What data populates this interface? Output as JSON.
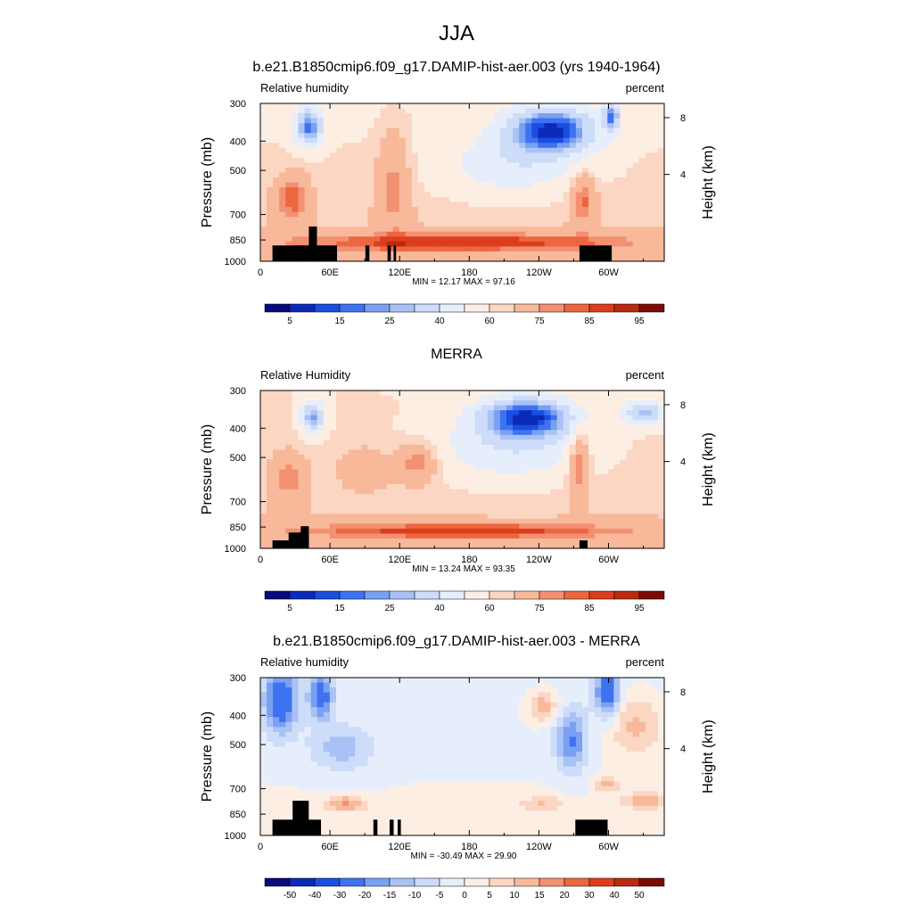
{
  "figure_title": "JJA",
  "chart_data": [
    {
      "type": "heatmap",
      "title": "b.e21.B1850cmip6.f09_g17.DAMIP-hist-aer.003 (yrs 1940-1964)",
      "left_label": "Relative humidity",
      "right_label": "percent",
      "ylabel": "Pressure (mb)",
      "y2label": "Height (km)",
      "yticks": [
        300,
        400,
        500,
        700,
        850,
        1000
      ],
      "y2ticks": [
        8,
        4
      ],
      "xticks": [
        "0",
        "60E",
        "120E",
        "180",
        "120W",
        "60W"
      ],
      "stats": "MIN =  12.17  MAX =  97.16",
      "colorbar_labels": [
        "5",
        "15",
        "25",
        "40",
        "60",
        "75",
        "85",
        "95"
      ],
      "colorbar_colors": [
        "#0a0a7a",
        "#0c2ab8",
        "#1a4ee0",
        "#3e72f0",
        "#7aa0f2",
        "#a9c2f5",
        "#cddcf8",
        "#e6eefc",
        "#fdeee4",
        "#fbd6c2",
        "#f8b89a",
        "#f39072",
        "#ec6640",
        "#dc3d1c",
        "#b92a10",
        "#7b0c05"
      ],
      "min": 12.17,
      "max": 97.16
    },
    {
      "type": "heatmap",
      "title": "MERRA",
      "left_label": "Relative Humidity",
      "right_label": "percent",
      "ylabel": "Pressure (mb)",
      "y2label": "Height (km)",
      "yticks": [
        300,
        400,
        500,
        700,
        850,
        1000
      ],
      "y2ticks": [
        8,
        4
      ],
      "xticks": [
        "0",
        "60E",
        "120E",
        "180",
        "120W",
        "60W"
      ],
      "stats": "MIN =  13.24  MAX =  93.35",
      "colorbar_labels": [
        "5",
        "15",
        "25",
        "40",
        "60",
        "75",
        "85",
        "95"
      ],
      "colorbar_colors": [
        "#0a0a7a",
        "#0c2ab8",
        "#1a4ee0",
        "#3e72f0",
        "#7aa0f2",
        "#a9c2f5",
        "#cddcf8",
        "#e6eefc",
        "#fdeee4",
        "#fbd6c2",
        "#f8b89a",
        "#f39072",
        "#ec6640",
        "#dc3d1c",
        "#b92a10",
        "#7b0c05"
      ],
      "min": 13.24,
      "max": 93.35
    },
    {
      "type": "heatmap",
      "title": "b.e21.B1850cmip6.f09_g17.DAMIP-hist-aer.003 - MERRA",
      "left_label": "Relative humidity",
      "right_label": "percent",
      "ylabel": "Pressure (mb)",
      "y2label": "Height (km)",
      "yticks": [
        300,
        400,
        500,
        700,
        850,
        1000
      ],
      "y2ticks": [
        8,
        4
      ],
      "xticks": [
        "0",
        "60E",
        "120E",
        "180",
        "120W",
        "60W"
      ],
      "stats": "MIN = -30.49  MAX =  29.90",
      "colorbar_labels": [
        "-50",
        "-40",
        "-30",
        "-20",
        "-15",
        "-10",
        "-5",
        "0",
        "5",
        "10",
        "15",
        "20",
        "30",
        "40",
        "50"
      ],
      "colorbar_colors": [
        "#0a0a7a",
        "#0c2ab8",
        "#1a4ee0",
        "#3e72f0",
        "#7aa0f2",
        "#a9c2f5",
        "#cddcf8",
        "#e6eefc",
        "#fdeee4",
        "#fbd6c2",
        "#f8b89a",
        "#f39072",
        "#ec6640",
        "#dc3d1c",
        "#b92a10",
        "#7b0c05"
      ],
      "min": -30.49,
      "max": 29.9
    }
  ]
}
